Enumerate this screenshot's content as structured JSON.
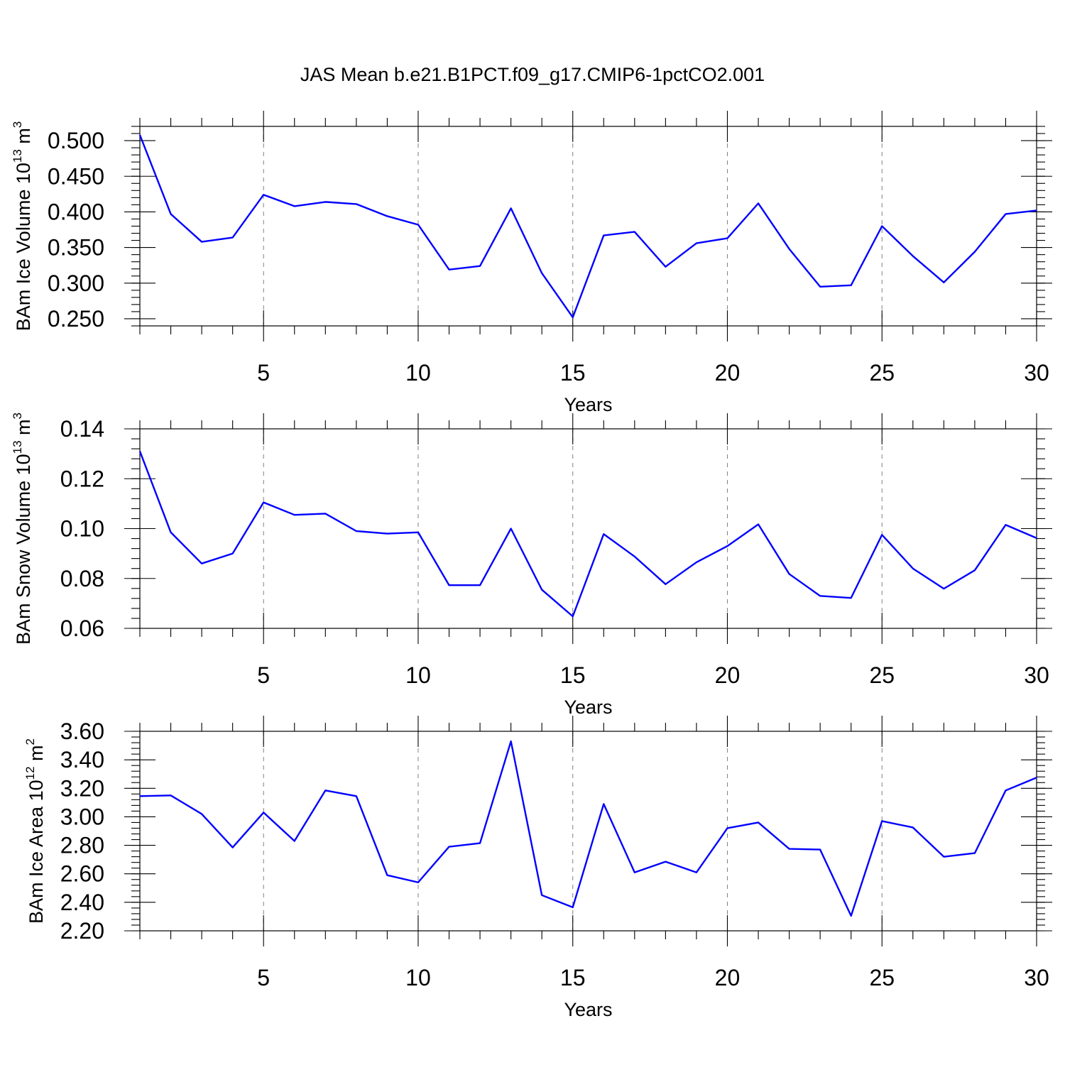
{
  "title": "JAS Mean b.e21.B1PCT.f09_g17.CMIP6-1pctCO2.001",
  "chart_data": [
    {
      "type": "line",
      "ylabel": {
        "base": "BAm Ice Volume 10",
        "exp": "13",
        "unit": " m",
        "unit_exp": "3"
      },
      "xlabel": "Years",
      "xlim": [
        1,
        30
      ],
      "ylim": [
        0.24,
        0.52
      ],
      "xticks": [
        5,
        10,
        15,
        20,
        25,
        30
      ],
      "yticks": [
        0.25,
        0.3,
        0.35,
        0.4,
        0.45,
        0.5
      ],
      "ytick_labels": [
        "0.250",
        "0.300",
        "0.350",
        "0.400",
        "0.450",
        "0.500"
      ],
      "y_minor_step": 0.01,
      "grid": "vertical dashed at major x ticks",
      "color": "#0000ff",
      "series": [
        {
          "name": "BAm Ice Volume",
          "x": [
            1,
            2,
            3,
            4,
            5,
            6,
            7,
            8,
            9,
            10,
            11,
            12,
            13,
            14,
            15,
            16,
            17,
            18,
            19,
            20,
            21,
            22,
            23,
            24,
            25,
            26,
            27,
            28,
            29,
            30
          ],
          "values": [
            0.508,
            0.397,
            0.358,
            0.364,
            0.424,
            0.408,
            0.414,
            0.411,
            0.394,
            0.382,
            0.319,
            0.324,
            0.405,
            0.314,
            0.252,
            0.367,
            0.372,
            0.323,
            0.356,
            0.363,
            0.412,
            0.348,
            0.295,
            0.297,
            0.38,
            0.338,
            0.301,
            0.344,
            0.397,
            0.402
          ]
        }
      ]
    },
    {
      "type": "line",
      "ylabel": {
        "base": "BAm Snow Volume 10",
        "exp": "13",
        "unit": " m",
        "unit_exp": "3"
      },
      "xlabel": "Years",
      "xlim": [
        1,
        30
      ],
      "ylim": [
        0.06,
        0.14
      ],
      "xticks": [
        5,
        10,
        15,
        20,
        25,
        30
      ],
      "yticks": [
        0.06,
        0.08,
        0.1,
        0.12,
        0.14
      ],
      "ytick_labels": [
        "0.06",
        "0.08",
        "0.10",
        "0.12",
        "0.14"
      ],
      "y_minor_step": 0.004,
      "grid": "vertical dashed at major x ticks",
      "color": "#0000ff",
      "series": [
        {
          "name": "BAm Snow Volume",
          "x": [
            1,
            2,
            3,
            4,
            5,
            6,
            7,
            8,
            9,
            10,
            11,
            12,
            13,
            14,
            15,
            16,
            17,
            18,
            19,
            20,
            21,
            22,
            23,
            24,
            25,
            26,
            27,
            28,
            29,
            30
          ],
          "values": [
            0.131,
            0.0985,
            0.086,
            0.09,
            0.1105,
            0.1055,
            0.106,
            0.099,
            0.098,
            0.0985,
            0.0773,
            0.0773,
            0.1,
            0.0755,
            0.0648,
            0.0978,
            0.0888,
            0.0777,
            0.0865,
            0.093,
            0.1017,
            0.0818,
            0.073,
            0.0722,
            0.0975,
            0.084,
            0.0759,
            0.0833,
            0.1015,
            0.0962
          ]
        }
      ]
    },
    {
      "type": "line",
      "ylabel": {
        "base": "BAm Ice Area 10",
        "exp": "12",
        "unit": " m",
        "unit_exp": "2"
      },
      "xlabel": "Years",
      "xlim": [
        1,
        30
      ],
      "ylim": [
        2.2,
        3.6
      ],
      "xticks": [
        5,
        10,
        15,
        20,
        25,
        30
      ],
      "yticks": [
        2.2,
        2.4,
        2.6,
        2.8,
        3.0,
        3.2,
        3.4,
        3.6
      ],
      "ytick_labels": [
        "2.20",
        "2.40",
        "2.60",
        "2.80",
        "3.00",
        "3.20",
        "3.40",
        "3.60"
      ],
      "y_minor_step": 0.04,
      "grid": "vertical dashed at major x ticks",
      "color": "#0000ff",
      "series": [
        {
          "name": "BAm Ice Area",
          "x": [
            1,
            2,
            3,
            4,
            5,
            6,
            7,
            8,
            9,
            10,
            11,
            12,
            13,
            14,
            15,
            16,
            17,
            18,
            19,
            20,
            21,
            22,
            23,
            24,
            25,
            26,
            27,
            28,
            29,
            30
          ],
          "values": [
            3.145,
            3.15,
            3.02,
            2.785,
            3.03,
            2.83,
            3.185,
            3.145,
            2.59,
            2.54,
            2.79,
            2.815,
            3.53,
            2.45,
            2.365,
            3.09,
            2.61,
            2.685,
            2.61,
            2.92,
            2.96,
            2.775,
            2.77,
            2.305,
            2.97,
            2.925,
            2.72,
            2.745,
            3.185,
            3.275
          ]
        }
      ]
    }
  ]
}
